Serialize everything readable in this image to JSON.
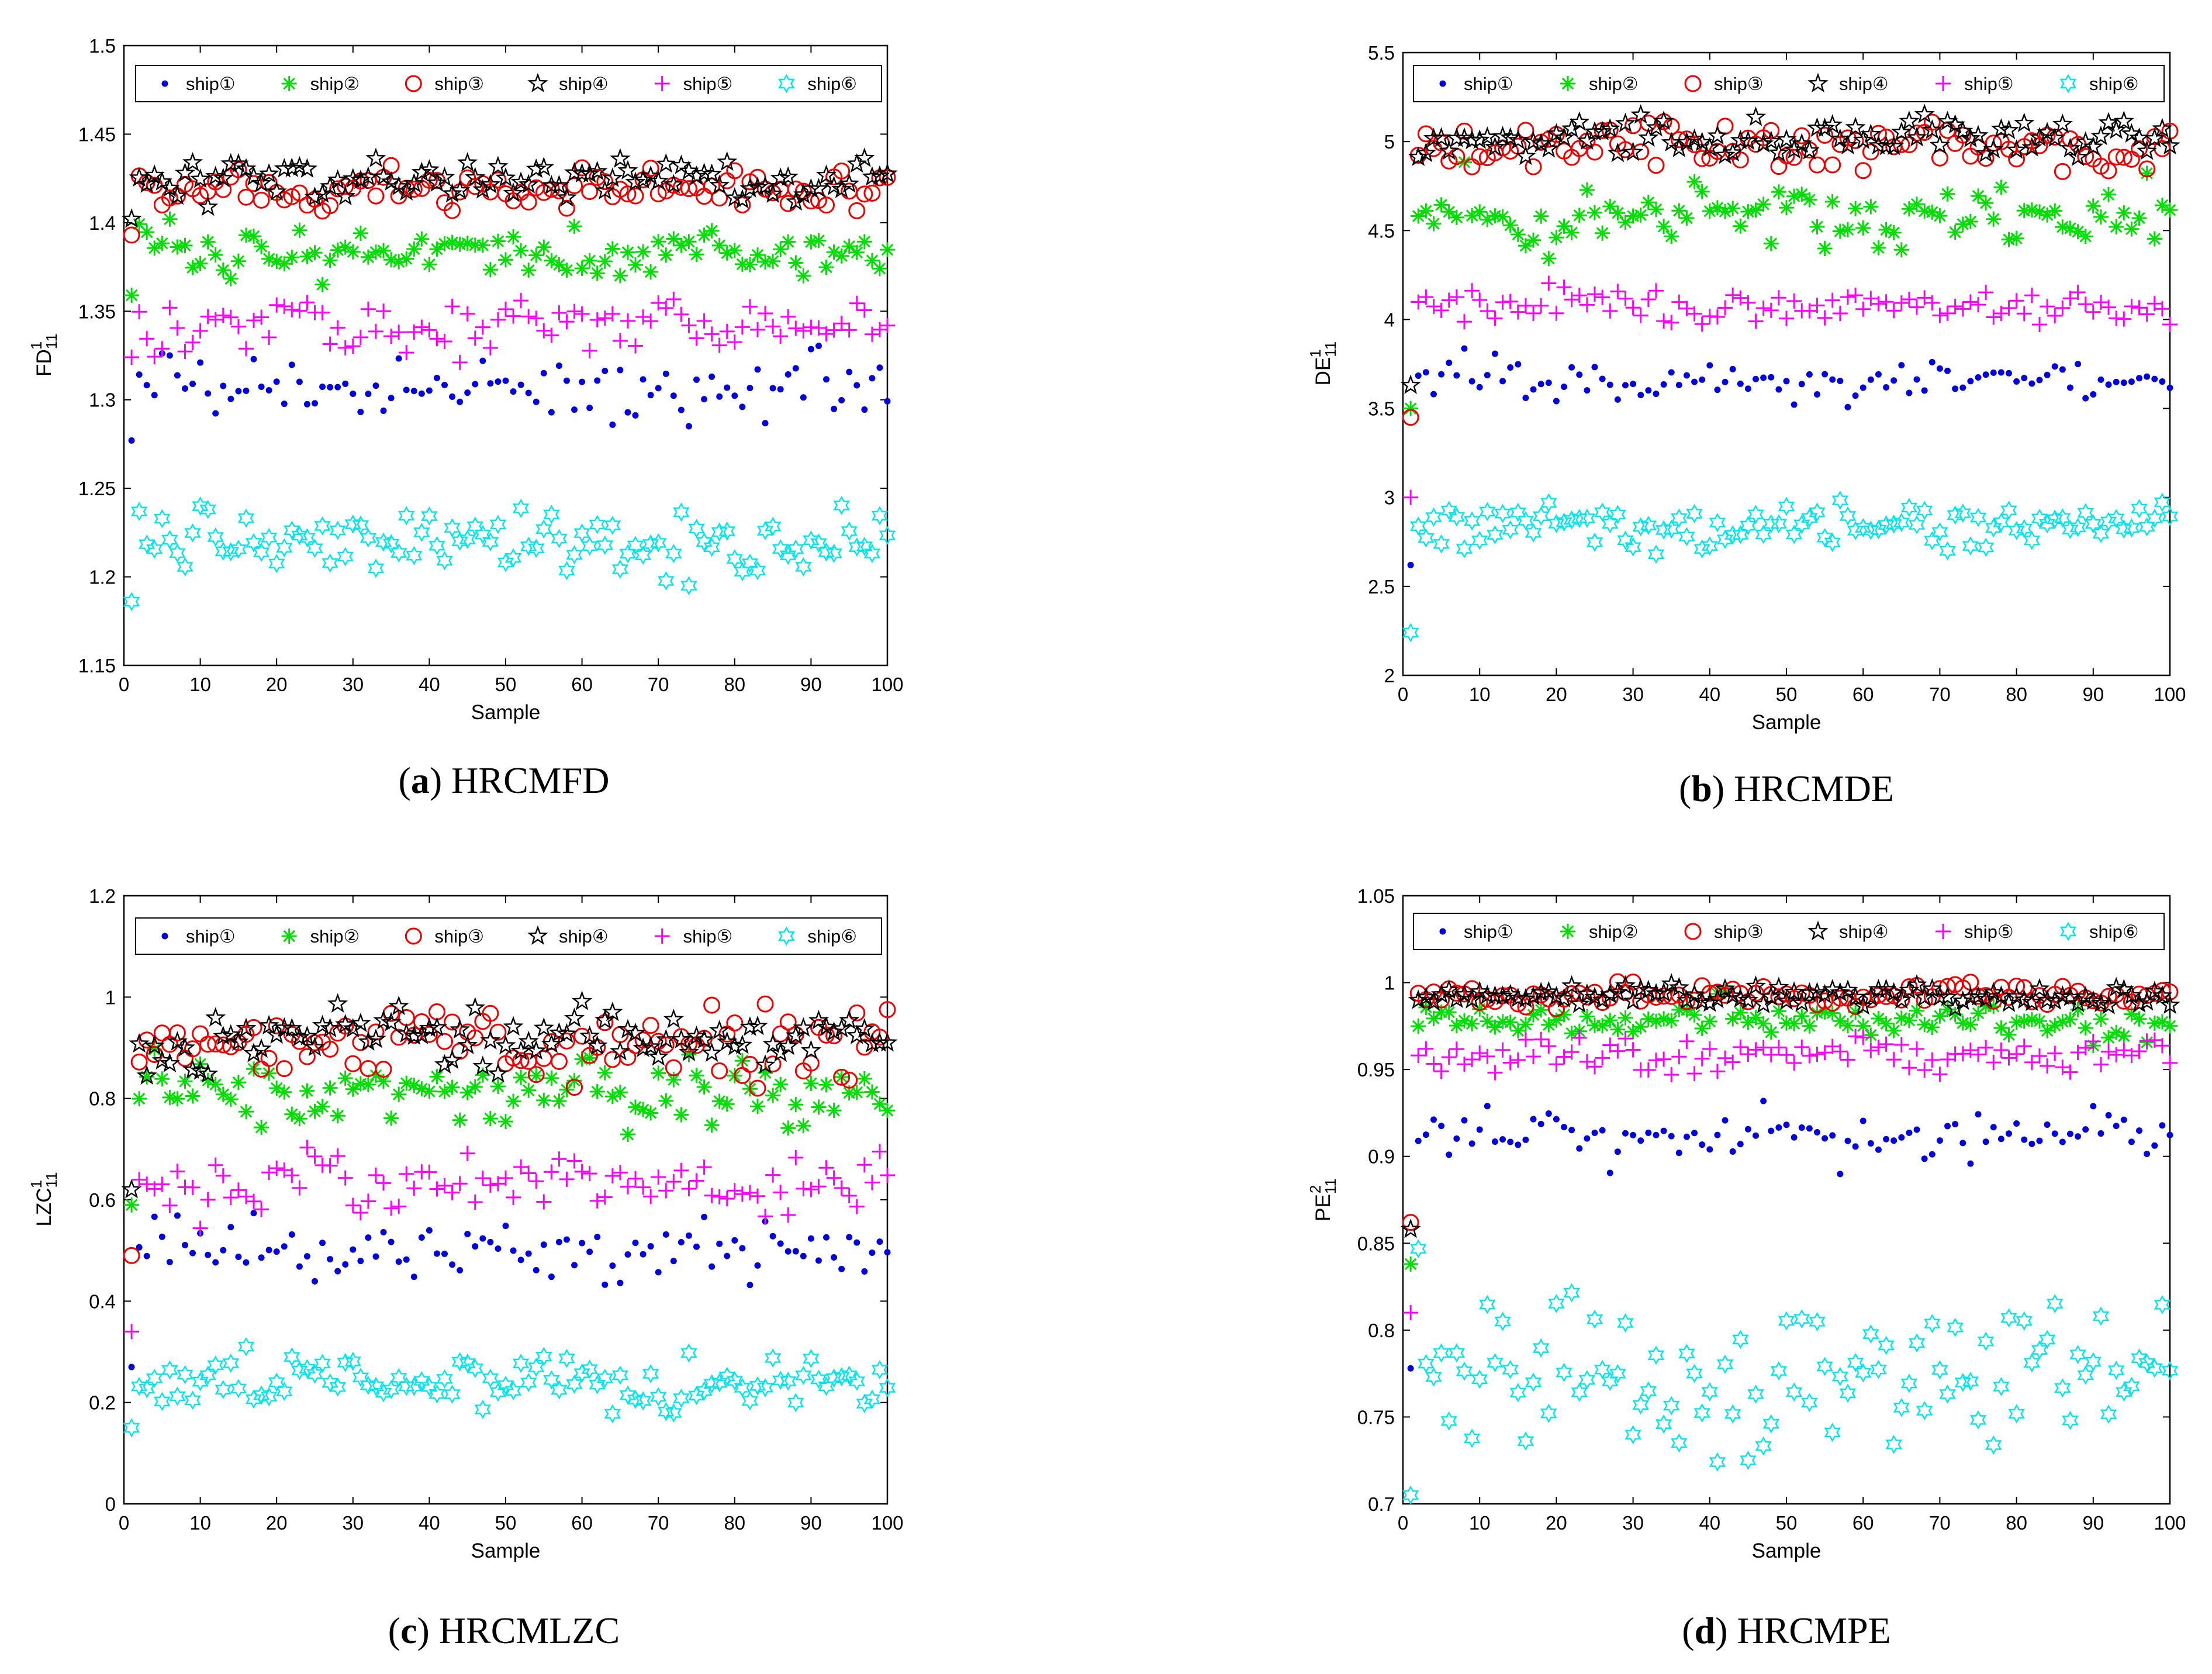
{
  "legend_colors": [
    "#0000dd",
    "#00dd00",
    "#ee0000",
    "#000000",
    "#ff00ff",
    "#00e5ee"
  ],
  "legend_markers": [
    "dot",
    "asterisk",
    "circle",
    "star",
    "plus",
    "hexagram"
  ],
  "chart_data": [
    {
      "type": "scatter",
      "caption_letter": "a",
      "caption_text": "HRCMFD",
      "xlabel": "Sample",
      "ylabel": {
        "base": "FD",
        "sub": "11",
        "sup": "1"
      },
      "xlim": [
        0,
        100
      ],
      "xticks": [
        0,
        10,
        20,
        30,
        40,
        50,
        60,
        70,
        80,
        90,
        100
      ],
      "ylim": [
        1.15,
        1.5
      ],
      "yticks": [
        "1.15",
        "1.2",
        "1.25",
        "1.3",
        "1.35",
        "1.4",
        "1.45",
        "1.5"
      ],
      "legend": [
        "ship①",
        "ship②",
        "ship③",
        "ship④",
        "ship⑤",
        "ship⑥"
      ],
      "series": [
        {
          "name": "ship①",
          "start": 1.277,
          "center": 1.307,
          "spread": 0.009
        },
        {
          "name": "ship②",
          "start": 1.359,
          "center": 1.385,
          "spread": 0.007
        },
        {
          "name": "ship③",
          "start": 1.393,
          "center": 1.419,
          "spread": 0.006
        },
        {
          "name": "ship④",
          "start": 1.402,
          "center": 1.424,
          "spread": 0.006
        },
        {
          "name": "ship⑤",
          "start": 1.324,
          "center": 1.343,
          "spread": 0.007
        },
        {
          "name": "ship⑥",
          "start": 1.186,
          "center": 1.219,
          "spread": 0.009
        }
      ]
    },
    {
      "type": "scatter",
      "caption_letter": "b",
      "caption_text": "HRCMDE",
      "xlabel": "Sample",
      "ylabel": {
        "base": "DE",
        "sub": "11",
        "sup": "1"
      },
      "xlim": [
        0,
        100
      ],
      "xticks": [
        0,
        10,
        20,
        30,
        40,
        50,
        60,
        70,
        80,
        90,
        100
      ],
      "ylim": [
        2,
        5.5
      ],
      "yticks": [
        "2",
        "2.5",
        "3",
        "3.5",
        "4",
        "4.5",
        "5",
        "5.5"
      ],
      "legend": [
        "ship①",
        "ship②",
        "ship③",
        "ship④",
        "ship⑤",
        "ship⑥"
      ],
      "series": [
        {
          "name": "ship①",
          "start": 2.62,
          "center": 3.65,
          "spread": 0.07
        },
        {
          "name": "ship②",
          "start": 3.5,
          "center": 4.58,
          "spread": 0.1
        },
        {
          "name": "ship③",
          "start": 3.45,
          "center": 4.97,
          "spread": 0.06
        },
        {
          "name": "ship④",
          "start": 3.63,
          "center": 5.02,
          "spread": 0.06
        },
        {
          "name": "ship⑤",
          "start": 3.0,
          "center": 4.06,
          "spread": 0.06
        },
        {
          "name": "ship⑥",
          "start": 2.24,
          "center": 2.84,
          "spread": 0.06
        }
      ]
    },
    {
      "type": "scatter",
      "caption_letter": "c",
      "caption_text": "HRCMLZC",
      "xlabel": "Sample",
      "ylabel": {
        "base": "LZC",
        "sub": "11",
        "sup": "1"
      },
      "xlim": [
        0,
        100
      ],
      "xticks": [
        0,
        10,
        20,
        30,
        40,
        50,
        60,
        70,
        80,
        90,
        100
      ],
      "ylim": [
        0,
        1.2
      ],
      "yticks": [
        "0",
        "0.2",
        "0.4",
        "0.6",
        "0.8",
        "1",
        "1.2"
      ],
      "legend": [
        "ship①",
        "ship②",
        "ship③",
        "ship④",
        "ship⑤",
        "ship⑥"
      ],
      "series": [
        {
          "name": "ship①",
          "start": 0.27,
          "center": 0.5,
          "spread": 0.035
        },
        {
          "name": "ship②",
          "start": 0.59,
          "center": 0.81,
          "spread": 0.035
        },
        {
          "name": "ship③",
          "start": 0.49,
          "center": 0.91,
          "spread": 0.035
        },
        {
          "name": "ship④",
          "start": 0.62,
          "center": 0.92,
          "spread": 0.03
        },
        {
          "name": "ship⑤",
          "start": 0.34,
          "center": 0.63,
          "spread": 0.03
        },
        {
          "name": "ship⑥",
          "start": 0.15,
          "center": 0.24,
          "spread": 0.025
        }
      ]
    },
    {
      "type": "scatter",
      "caption_letter": "d",
      "caption_text": "HRCMPE",
      "xlabel": "Sample",
      "ylabel": {
        "base": "PE",
        "sub": "11",
        "sup": "2"
      },
      "xlim": [
        0,
        100
      ],
      "xticks": [
        0,
        10,
        20,
        30,
        40,
        50,
        60,
        70,
        80,
        90,
        100
      ],
      "ylim": [
        0.7,
        1.05
      ],
      "yticks": [
        "0.7",
        "0.75",
        "0.8",
        "0.85",
        "0.9",
        "0.95",
        "1",
        "1.05"
      ],
      "legend": [
        "ship①",
        "ship②",
        "ship③",
        "ship④",
        "ship⑤",
        "ship⑥"
      ],
      "series": [
        {
          "name": "ship①",
          "start": 0.778,
          "center": 0.91,
          "spread": 0.008
        },
        {
          "name": "ship②",
          "start": 0.838,
          "center": 0.978,
          "spread": 0.005
        },
        {
          "name": "ship③",
          "start": 0.862,
          "center": 0.993,
          "spread": 0.003
        },
        {
          "name": "ship④",
          "start": 0.858,
          "center": 0.992,
          "spread": 0.003
        },
        {
          "name": "ship⑤",
          "start": 0.81,
          "center": 0.958,
          "spread": 0.006
        },
        {
          "name": "ship⑥",
          "start": 0.705,
          "center": 0.778,
          "spread": 0.025
        }
      ]
    }
  ]
}
